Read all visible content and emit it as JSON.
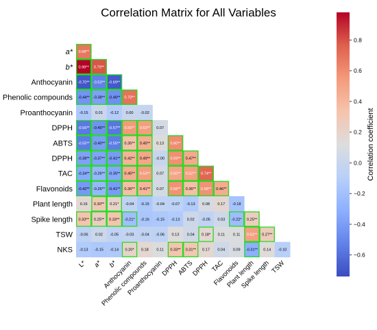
{
  "chart_data": {
    "type": "heatmap",
    "title": "Correlation Matrix for All Variables",
    "colorbar_label": "Correlation coefficient",
    "colorbar_range": [
      -0.74,
      0.98
    ],
    "colorbar_ticks": [
      0.8,
      0.6,
      0.4,
      0.2,
      0.0,
      -0.2,
      -0.4,
      -0.6
    ],
    "colorbar_tick_labels": [
      "0.8",
      "0.6",
      "0.4",
      "0.2",
      "0.0",
      "−0.2",
      "−0.4",
      "−0.6"
    ],
    "colorscale": "coolwarm",
    "highlight_color": "#22dd22",
    "row_labels": [
      "a*",
      "b*",
      "Anthocyanin",
      "Phenolic compounds",
      "Proanthocyanin",
      "DPPH",
      "ABTS",
      "DPPH",
      "TAC",
      "Flavonoids",
      "Plant length",
      "Spike length",
      "TSW",
      "NKS"
    ],
    "col_labels": [
      "L*",
      "a*",
      "b*",
      "Anthocyanin",
      "Phenolic compounds",
      "Proanthocyanin",
      "DPPH",
      "ABTS",
      "DPPH",
      "TAC",
      "Flavonoids",
      "Plant length",
      "Spike length",
      "TSW"
    ],
    "rows": [
      [
        {
          "v": 0.68,
          "t": "0.68**"
        }
      ],
      [
        {
          "v": 0.98,
          "t": "0.98**"
        },
        {
          "v": 0.79,
          "t": "0.79**"
        }
      ],
      [
        {
          "v": -0.7,
          "t": "-0.70**"
        },
        {
          "v": -0.53,
          "t": "-0.53**"
        },
        {
          "v": -0.69,
          "t": "-0.69**"
        }
      ],
      [
        {
          "v": -0.44,
          "t": "-0.44**"
        },
        {
          "v": -0.38,
          "t": "-0.38**"
        },
        {
          "v": -0.46,
          "t": "-0.46**"
        },
        {
          "v": 0.7,
          "t": "0.70**"
        }
      ],
      [
        {
          "v": -0.15,
          "t": "-0.15"
        },
        {
          "v": 0.01,
          "t": "0.01"
        },
        {
          "v": -0.12,
          "t": "-0.12"
        },
        {
          "v": 0.0,
          "t": "0.00"
        },
        {
          "v": -0.02,
          "t": "-0.02"
        }
      ],
      [
        {
          "v": -0.56,
          "t": "-0.56**"
        },
        {
          "v": -0.45,
          "t": "-0.45**"
        },
        {
          "v": -0.57,
          "t": "-0.57**"
        },
        {
          "v": 0.55,
          "t": "0.55**"
        },
        {
          "v": 0.53,
          "t": "0.53**"
        },
        {
          "v": 0.07,
          "t": "0.07"
        }
      ],
      [
        {
          "v": -0.55,
          "t": "-0.55**"
        },
        {
          "v": -0.4,
          "t": "-0.40**"
        },
        {
          "v": -0.55,
          "t": "-0.55**"
        },
        {
          "v": 0.35,
          "t": "0.35**"
        },
        {
          "v": 0.45,
          "t": "0.45**"
        },
        {
          "v": 0.13,
          "t": "0.13"
        },
        {
          "v": 0.6,
          "t": "0.60**"
        }
      ],
      [
        {
          "v": -0.38,
          "t": "-0.38**"
        },
        {
          "v": -0.37,
          "t": "-0.37**"
        },
        {
          "v": -0.41,
          "t": "-0.41**"
        },
        {
          "v": 0.42,
          "t": "0.42**"
        },
        {
          "v": 0.49,
          "t": "0.49**"
        },
        {
          "v": 0.0,
          "t": "-0.00"
        },
        {
          "v": 0.59,
          "t": "0.59**"
        },
        {
          "v": 0.47,
          "t": "0.47**"
        }
      ],
      [
        {
          "v": -0.34,
          "t": "-0.34**"
        },
        {
          "v": -0.26,
          "t": "-0.26**"
        },
        {
          "v": -0.35,
          "t": "-0.35**"
        },
        {
          "v": 0.45,
          "t": "0.45**"
        },
        {
          "v": 0.53,
          "t": "0.53**"
        },
        {
          "v": 0.07,
          "t": "0.07"
        },
        {
          "v": 0.5,
          "t": "0.50**"
        },
        {
          "v": 0.52,
          "t": "0.52**"
        },
        {
          "v": 0.74,
          "t": "0.74**"
        }
      ],
      [
        {
          "v": -0.42,
          "t": "-0.42**"
        },
        {
          "v": -0.26,
          "t": "-0.26**"
        },
        {
          "v": -0.41,
          "t": "-0.41**"
        },
        {
          "v": 0.36,
          "t": "0.36**"
        },
        {
          "v": 0.41,
          "t": "0.41**"
        },
        {
          "v": 0.07,
          "t": "0.07"
        },
        {
          "v": 0.58,
          "t": "0.58**"
        },
        {
          "v": 0.36,
          "t": "0.36**"
        },
        {
          "v": 0.58,
          "t": "0.58**"
        },
        {
          "v": 0.46,
          "t": "0.46**"
        }
      ],
      [
        {
          "v": 0.16,
          "t": "0.16"
        },
        {
          "v": 0.3,
          "t": "0.30**"
        },
        {
          "v": 0.21,
          "t": "0.21*"
        },
        {
          "v": -0.04,
          "t": "-0.04"
        },
        {
          "v": -0.15,
          "t": "-0.15"
        },
        {
          "v": -0.04,
          "t": "-0.04"
        },
        {
          "v": -0.07,
          "t": "-0.07"
        },
        {
          "v": -0.13,
          "t": "-0.13"
        },
        {
          "v": 0.08,
          "t": "0.08"
        },
        {
          "v": 0.17,
          "t": "0.17"
        },
        {
          "v": -0.18,
          "t": "-0.18"
        }
      ],
      [
        {
          "v": 0.33,
          "t": "0.33**"
        },
        {
          "v": 0.25,
          "t": "0.25**"
        },
        {
          "v": 0.33,
          "t": "0.33**"
        },
        {
          "v": -0.21,
          "t": "-0.21*"
        },
        {
          "v": -0.16,
          "t": "-0.16"
        },
        {
          "v": -0.15,
          "t": "-0.15"
        },
        {
          "v": -0.13,
          "t": "-0.13"
        },
        {
          "v": 0.02,
          "t": "0.02"
        },
        {
          "v": -0.05,
          "t": "-0.05"
        },
        {
          "v": 0.03,
          "t": "0.03"
        },
        {
          "v": -0.22,
          "t": "-0.22*"
        },
        {
          "v": 0.25,
          "t": "0.25**"
        }
      ],
      [
        {
          "v": -0.06,
          "t": "-0.06"
        },
        {
          "v": 0.02,
          "t": "0.02"
        },
        {
          "v": -0.05,
          "t": "-0.05"
        },
        {
          "v": -0.03,
          "t": "-0.03"
        },
        {
          "v": -0.04,
          "t": "-0.04"
        },
        {
          "v": -0.06,
          "t": "-0.06"
        },
        {
          "v": 0.13,
          "t": "0.13"
        },
        {
          "v": 0.04,
          "t": "0.04"
        },
        {
          "v": 0.18,
          "t": "0.18*"
        },
        {
          "v": 0.11,
          "t": "0.11"
        },
        {
          "v": 0.11,
          "t": "0.11"
        },
        {
          "v": 0.52,
          "t": "0.52**"
        },
        {
          "v": 0.27,
          "t": "0.27**"
        }
      ],
      [
        {
          "v": -0.13,
          "t": "-0.13"
        },
        {
          "v": -0.15,
          "t": "-0.15"
        },
        {
          "v": -0.14,
          "t": "-0.14"
        },
        {
          "v": 0.2,
          "t": "0.20*"
        },
        {
          "v": 0.18,
          "t": "0.18"
        },
        {
          "v": 0.11,
          "t": "0.11"
        },
        {
          "v": 0.33,
          "t": "0.33**"
        },
        {
          "v": 0.31,
          "t": "0.31**"
        },
        {
          "v": 0.17,
          "t": "0.17"
        },
        {
          "v": 0.04,
          "t": "0.04"
        },
        {
          "v": 0.09,
          "t": "0.09"
        },
        {
          "v": -0.31,
          "t": "-0.31**"
        },
        {
          "v": 0.14,
          "t": "0.14"
        },
        {
          "v": -0.1,
          "t": "-0.10"
        }
      ]
    ]
  }
}
